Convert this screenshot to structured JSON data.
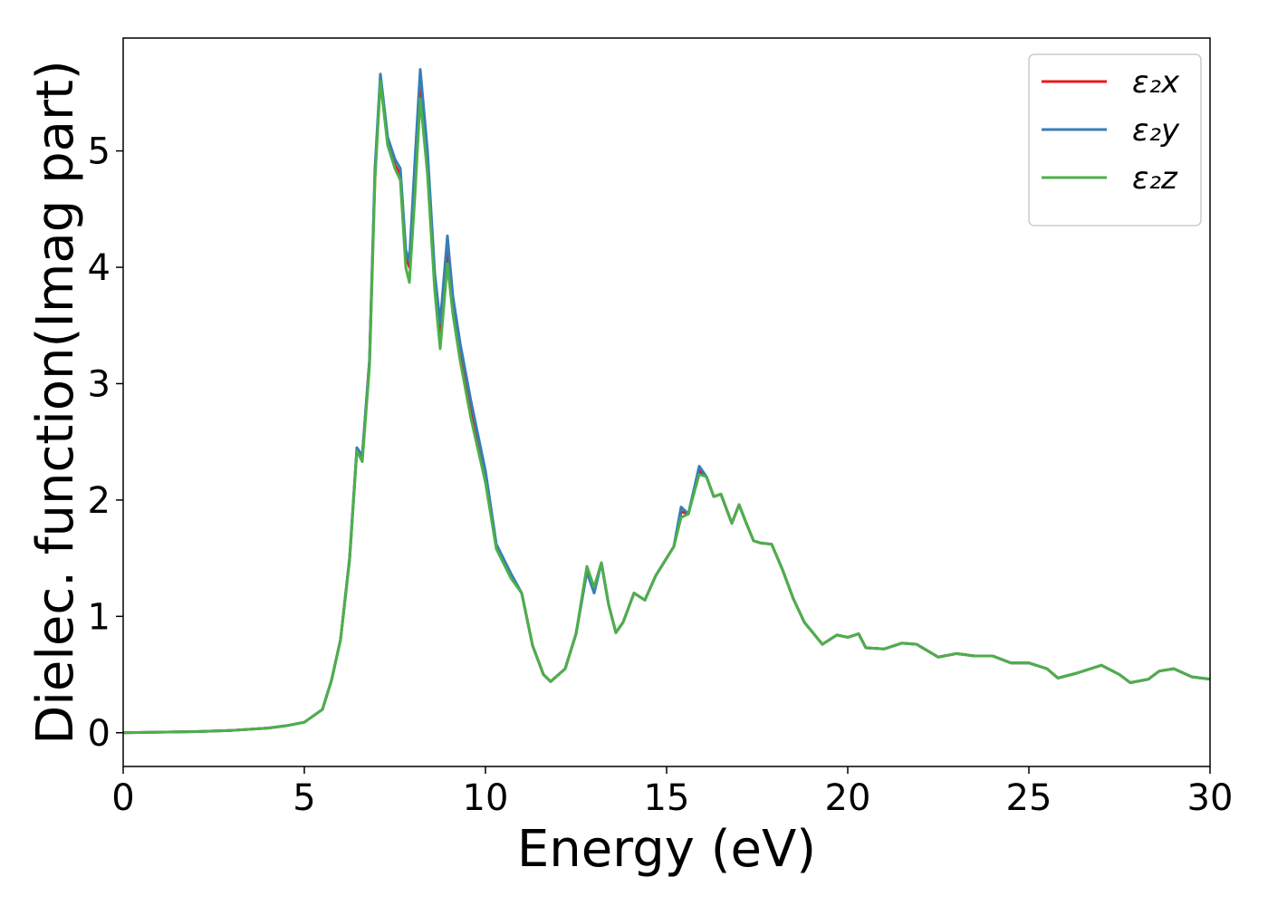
{
  "chart_data": {
    "type": "line",
    "xlabel": "Energy (eV)",
    "ylabel": "Dielec. function(Imag part)",
    "xlim": [
      0,
      30
    ],
    "ylim": [
      -0.29,
      5.97
    ],
    "xticks": [
      0,
      5,
      10,
      15,
      20,
      25,
      30
    ],
    "yticks": [
      0,
      1,
      2,
      3,
      4,
      5
    ],
    "grid": false,
    "legend": "upper right",
    "x": [
      0,
      1,
      2,
      3,
      4,
      4.5,
      5,
      5.5,
      5.75,
      6,
      6.25,
      6.45,
      6.6,
      6.8,
      6.95,
      7.1,
      7.3,
      7.5,
      7.65,
      7.8,
      7.9,
      8.05,
      8.2,
      8.4,
      8.6,
      8.75,
      8.95,
      9.1,
      9.3,
      9.6,
      10,
      10.3,
      10.7,
      11,
      11.3,
      11.6,
      11.8,
      12.2,
      12.5,
      12.8,
      13,
      13.2,
      13.4,
      13.6,
      13.8,
      14.1,
      14.4,
      14.7,
      15,
      15.2,
      15.4,
      15.6,
      15.9,
      16.1,
      16.3,
      16.5,
      16.8,
      17,
      17.2,
      17.4,
      17.6,
      17.9,
      18.2,
      18.5,
      18.8,
      19.3,
      19.7,
      20,
      20.3,
      20.5,
      21,
      21.5,
      21.9,
      22.5,
      23,
      23.5,
      24,
      24.5,
      25,
      25.5,
      25.8,
      26.3,
      27,
      27.5,
      27.8,
      28.3,
      28.6,
      29,
      29.5,
      30
    ],
    "series": [
      {
        "name": "ε₂x",
        "color": "#e41a1c",
        "values": [
          0,
          0.005,
          0.01,
          0.02,
          0.04,
          0.06,
          0.09,
          0.2,
          0.45,
          0.8,
          1.5,
          2.43,
          2.38,
          3.2,
          4.8,
          5.62,
          5.1,
          4.88,
          4.8,
          4.1,
          4.0,
          4.8,
          5.6,
          4.9,
          3.9,
          3.45,
          4.15,
          3.7,
          3.3,
          2.8,
          2.2,
          1.6,
          1.35,
          1.2,
          0.75,
          0.5,
          0.44,
          0.55,
          0.85,
          1.4,
          1.25,
          1.46,
          1.1,
          0.86,
          0.95,
          1.2,
          1.14,
          1.35,
          1.5,
          1.6,
          1.9,
          1.88,
          2.25,
          2.2,
          2.03,
          2.05,
          1.8,
          1.96,
          1.8,
          1.65,
          1.63,
          1.62,
          1.4,
          1.15,
          0.95,
          0.76,
          0.84,
          0.82,
          0.85,
          0.73,
          0.72,
          0.77,
          0.76,
          0.65,
          0.68,
          0.66,
          0.66,
          0.6,
          0.6,
          0.55,
          0.47,
          0.51,
          0.58,
          0.5,
          0.43,
          0.46,
          0.53,
          0.55,
          0.48,
          0.46
        ]
      },
      {
        "name": "ε₂y",
        "color": "#377eb8",
        "values": [
          0,
          0.005,
          0.01,
          0.02,
          0.04,
          0.06,
          0.09,
          0.2,
          0.45,
          0.8,
          1.5,
          2.45,
          2.38,
          3.2,
          4.85,
          5.66,
          5.12,
          4.93,
          4.85,
          4.15,
          4.05,
          4.9,
          5.7,
          5.0,
          3.95,
          3.52,
          4.27,
          3.75,
          3.35,
          2.85,
          2.25,
          1.62,
          1.37,
          1.2,
          0.75,
          0.5,
          0.44,
          0.55,
          0.85,
          1.38,
          1.2,
          1.46,
          1.1,
          0.86,
          0.95,
          1.2,
          1.14,
          1.35,
          1.5,
          1.6,
          1.94,
          1.88,
          2.29,
          2.2,
          2.03,
          2.05,
          1.8,
          1.96,
          1.8,
          1.65,
          1.63,
          1.62,
          1.4,
          1.15,
          0.95,
          0.76,
          0.84,
          0.82,
          0.85,
          0.73,
          0.72,
          0.77,
          0.76,
          0.65,
          0.68,
          0.66,
          0.66,
          0.6,
          0.6,
          0.55,
          0.47,
          0.51,
          0.58,
          0.5,
          0.43,
          0.46,
          0.53,
          0.55,
          0.48,
          0.46
        ]
      },
      {
        "name": "ε₂z",
        "color": "#4daf4a",
        "values": [
          0,
          0.005,
          0.01,
          0.02,
          0.04,
          0.06,
          0.09,
          0.2,
          0.45,
          0.8,
          1.48,
          2.42,
          2.33,
          3.15,
          4.75,
          5.6,
          5.05,
          4.85,
          4.75,
          4.0,
          3.87,
          4.6,
          5.45,
          4.8,
          3.8,
          3.3,
          4.03,
          3.6,
          3.2,
          2.7,
          2.15,
          1.58,
          1.33,
          1.2,
          0.75,
          0.5,
          0.44,
          0.55,
          0.85,
          1.43,
          1.25,
          1.46,
          1.1,
          0.86,
          0.95,
          1.2,
          1.14,
          1.35,
          1.5,
          1.6,
          1.85,
          1.88,
          2.22,
          2.2,
          2.03,
          2.05,
          1.8,
          1.96,
          1.8,
          1.65,
          1.63,
          1.62,
          1.4,
          1.15,
          0.95,
          0.76,
          0.84,
          0.82,
          0.85,
          0.73,
          0.72,
          0.77,
          0.76,
          0.65,
          0.68,
          0.66,
          0.66,
          0.6,
          0.6,
          0.55,
          0.47,
          0.51,
          0.58,
          0.5,
          0.43,
          0.46,
          0.53,
          0.55,
          0.48,
          0.46
        ]
      }
    ]
  }
}
